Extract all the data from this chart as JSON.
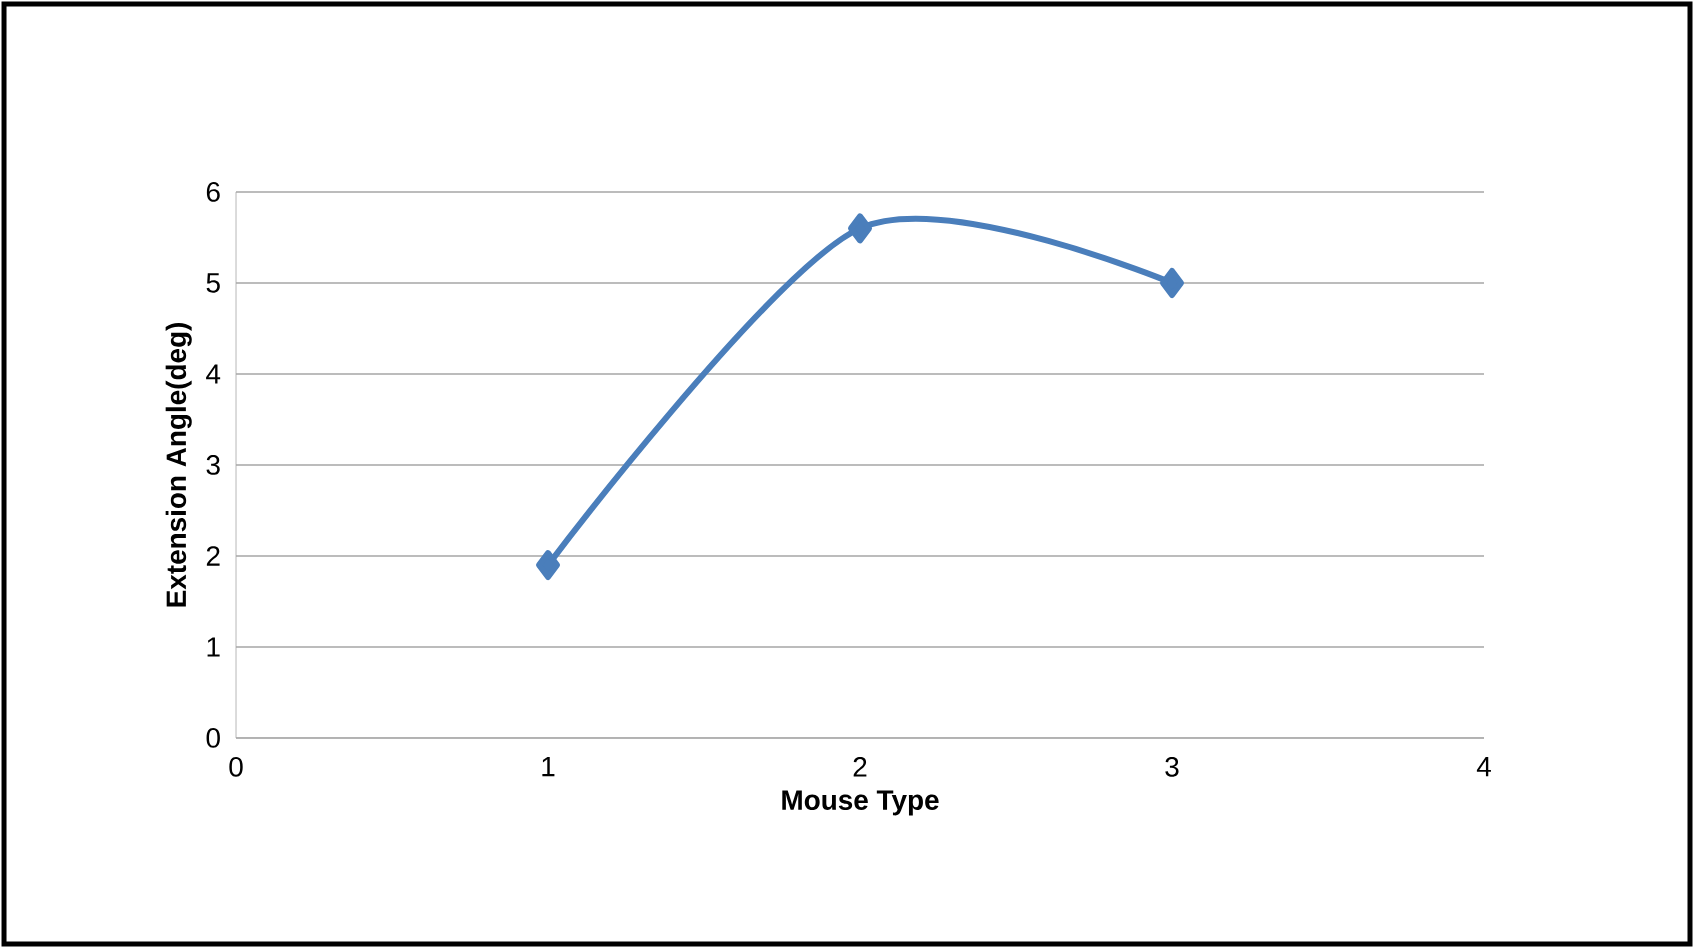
{
  "chart_data": {
    "type": "line",
    "xlabel": "Mouse Type",
    "ylabel": "Extension  Angle(deg)",
    "x": [
      1,
      2,
      3
    ],
    "series": [
      {
        "color": "#4a7ebb",
        "values": [
          1.9,
          5.6,
          5.0
        ]
      }
    ],
    "xlim": [
      0,
      4
    ],
    "xticks": [
      0,
      1,
      2,
      3,
      4
    ],
    "ylim": [
      0,
      6
    ],
    "yticks": [
      0,
      1,
      2,
      3,
      4,
      5,
      6
    ],
    "grid": "y",
    "marker": "diamond",
    "line_style": "solid"
  }
}
